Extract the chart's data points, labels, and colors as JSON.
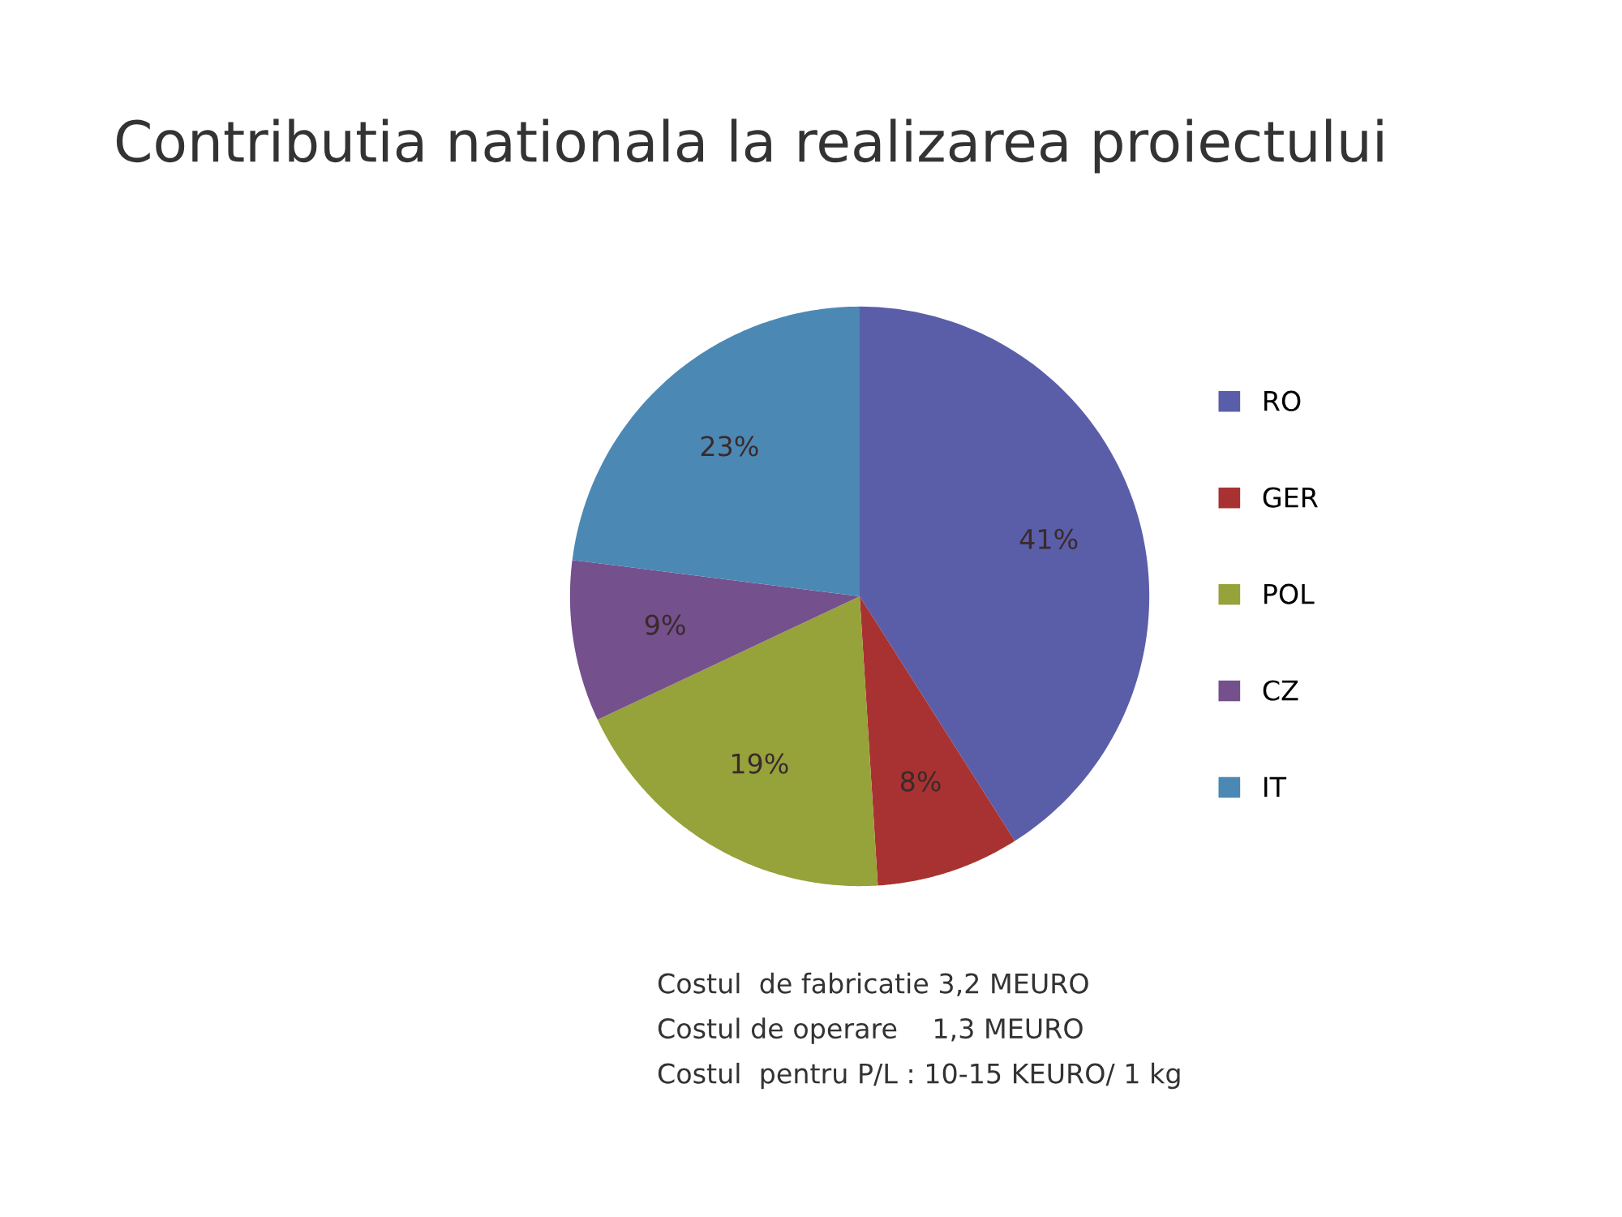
{
  "chart_data": {
    "type": "pie",
    "title": "Contributia nationala la realizarea proiectului",
    "categories": [
      "RO",
      "GER",
      "POL",
      "CZ",
      "IT"
    ],
    "values": [
      41,
      8,
      19,
      9,
      23
    ],
    "colors": [
      "#5a5ea8",
      "#a83232",
      "#96a23a",
      "#74508c",
      "#4c88b4"
    ],
    "value_labels": [
      "41%",
      "8%",
      "19%",
      "9%",
      "23%"
    ],
    "legend": "right",
    "annotations": [
      "Costul  de fabricatie 3,2 MEURO",
      "Costul de operare    1,3 MEURO",
      "Costul  pentru P/L : 10-15 KEURO/ 1 kg"
    ]
  }
}
